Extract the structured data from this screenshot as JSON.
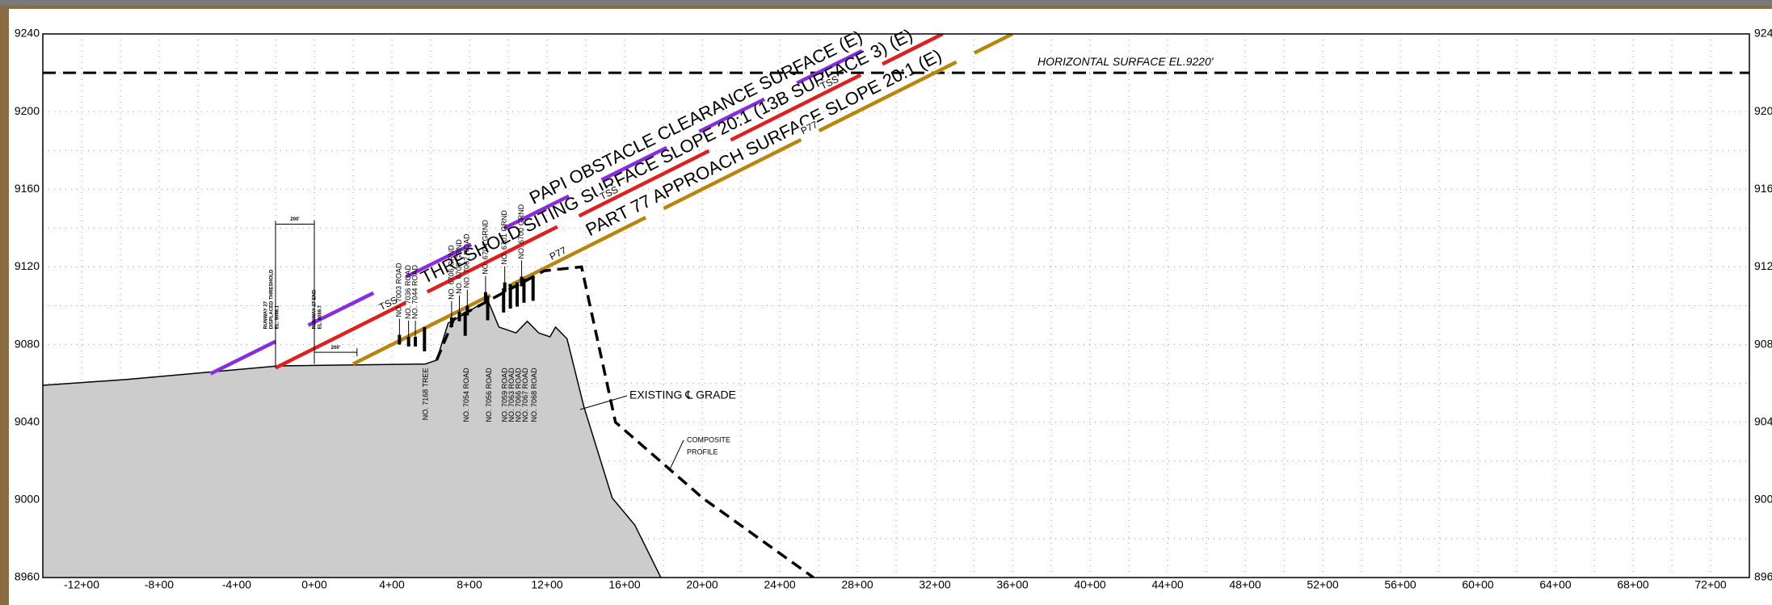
{
  "chart_data": {
    "type": "line",
    "xlim": [
      -1400,
      7400
    ],
    "xticks": [
      {
        "value": -1200,
        "label": "-12+00"
      },
      {
        "value": -800,
        "label": "-8+00"
      },
      {
        "value": -400,
        "label": "-4+00"
      },
      {
        "value": 0,
        "label": "0+00"
      },
      {
        "value": 400,
        "label": "4+00"
      },
      {
        "value": 800,
        "label": "8+00"
      },
      {
        "value": 1200,
        "label": "12+00"
      },
      {
        "value": 1600,
        "label": "16+00"
      },
      {
        "value": 2000,
        "label": "20+00"
      },
      {
        "value": 2400,
        "label": "24+00"
      },
      {
        "value": 2800,
        "label": "28+00"
      },
      {
        "value": 3200,
        "label": "32+00"
      },
      {
        "value": 3600,
        "label": "36+00"
      },
      {
        "value": 4000,
        "label": "40+00"
      },
      {
        "value": 4400,
        "label": "44+00"
      },
      {
        "value": 4800,
        "label": "48+00"
      },
      {
        "value": 5200,
        "label": "52+00"
      },
      {
        "value": 5600,
        "label": "56+00"
      },
      {
        "value": 6000,
        "label": "60+00"
      },
      {
        "value": 6400,
        "label": "64+00"
      },
      {
        "value": 6800,
        "label": "68+00"
      },
      {
        "value": 7200,
        "label": "72+00"
      }
    ],
    "ylim": [
      8960,
      9240
    ],
    "yticks": [
      8960,
      9000,
      9040,
      9080,
      9120,
      9160,
      9200,
      9240
    ],
    "grid": true,
    "ground": {
      "name": "EXISTING ℄ GRADE",
      "color": "#cccccc",
      "x": [
        -1400,
        -972,
        -185,
        573,
        631,
        690,
        778,
        894,
        952,
        1040,
        1098,
        1157,
        1215,
        1244,
        1303,
        1390,
        1536,
        1653,
        1787
      ],
      "values": [
        9059,
        9062,
        9069,
        9070,
        9072,
        9091,
        9096,
        9103,
        9089,
        9086,
        9092,
        9086,
        9084,
        9089,
        9083,
        9048,
        9001,
        8987,
        8960
      ]
    },
    "composite": {
      "name": [
        "COMPOSITE",
        "PROFILE"
      ],
      "color": "#000000",
      "x": [
        631,
        719,
        1186,
        1378,
        1553,
        2002,
        2574
      ],
      "values": [
        9072,
        9093,
        9118,
        9120,
        9040,
        9001,
        8960
      ]
    },
    "series": [
      {
        "name": "PAPI OBSTACLE CLEARANCE SURFACE (E)",
        "color": "#8a2be2",
        "x": [
          -535,
          3000
        ],
        "values": [
          9065,
          9240
        ]
      },
      {
        "name": "THRESHOLD SITING SURFACE SLOPE 20:1 (13B SURFACE 3) (E)",
        "tag": "TSS",
        "color": "#e02020",
        "x": [
          -200,
          3240
        ],
        "values": [
          9068,
          9240
        ]
      },
      {
        "name": "PART 77 APPROACH SURFACE SLOPE 20:1 (E)",
        "tag": "P77",
        "color": "#b8860b",
        "x": [
          200,
          3600
        ],
        "values": [
          9070,
          9240
        ]
      }
    ],
    "horizontal_surface": {
      "label": "HORIZONTAL SURFACE EL.9220'",
      "value": 9220
    },
    "runway": [
      {
        "label": [
          "RUNWAY 27",
          "DISPLACED THRESHOLD",
          "EL. 9068.1"
        ],
        "x": -200,
        "y": 9068
      },
      {
        "label": [
          "RUNWAY 27 END",
          "EL. 9069.7"
        ],
        "x": 0,
        "y": 9070
      }
    ],
    "dimensions": [
      "200'",
      "200'"
    ],
    "obstacles_above": [
      {
        "name": "NO. 7003 ROAD",
        "x": 439,
        "y": 9085
      },
      {
        "name": "NO. 7036 ROAD",
        "x": 486,
        "y": 9084
      },
      {
        "name": "NO. 7044 ROAD",
        "x": 521,
        "y": 9084
      },
      {
        "name": "NO. 6706 GRND",
        "x": 708,
        "y": 9094
      },
      {
        "name": "NO. 6705 GRND",
        "x": 748,
        "y": 9097
      },
      {
        "name": "NO. 7062 ROAD",
        "x": 789,
        "y": 9100
      },
      {
        "name": "NO. 6704 GRND",
        "x": 883,
        "y": 9107
      },
      {
        "name": "NO. 6701 GRND",
        "x": 982,
        "y": 9112
      },
      {
        "name": "NO. 6700 GRND",
        "x": 1069,
        "y": 9115
      }
    ],
    "obstacles_below": [
      {
        "name": "NO. 7168 TREE",
        "x": 568,
        "y": 9089
      },
      {
        "name": "NO. 7054 ROAD",
        "x": 778,
        "y": 9097
      },
      {
        "name": "NO. 7056 ROAD",
        "x": 894,
        "y": 9105
      },
      {
        "name": "NO. 7059 ROAD",
        "x": 976,
        "y": 9109
      },
      {
        "name": "NO. 7063 ROAD",
        "x": 1011,
        "y": 9111
      },
      {
        "name": "NO. 7066 ROAD",
        "x": 1046,
        "y": 9112
      },
      {
        "name": "NO. 7067 ROAD",
        "x": 1081,
        "y": 9114
      },
      {
        "name": "NO. 7068 ROAD",
        "x": 1128,
        "y": 9115
      }
    ]
  }
}
